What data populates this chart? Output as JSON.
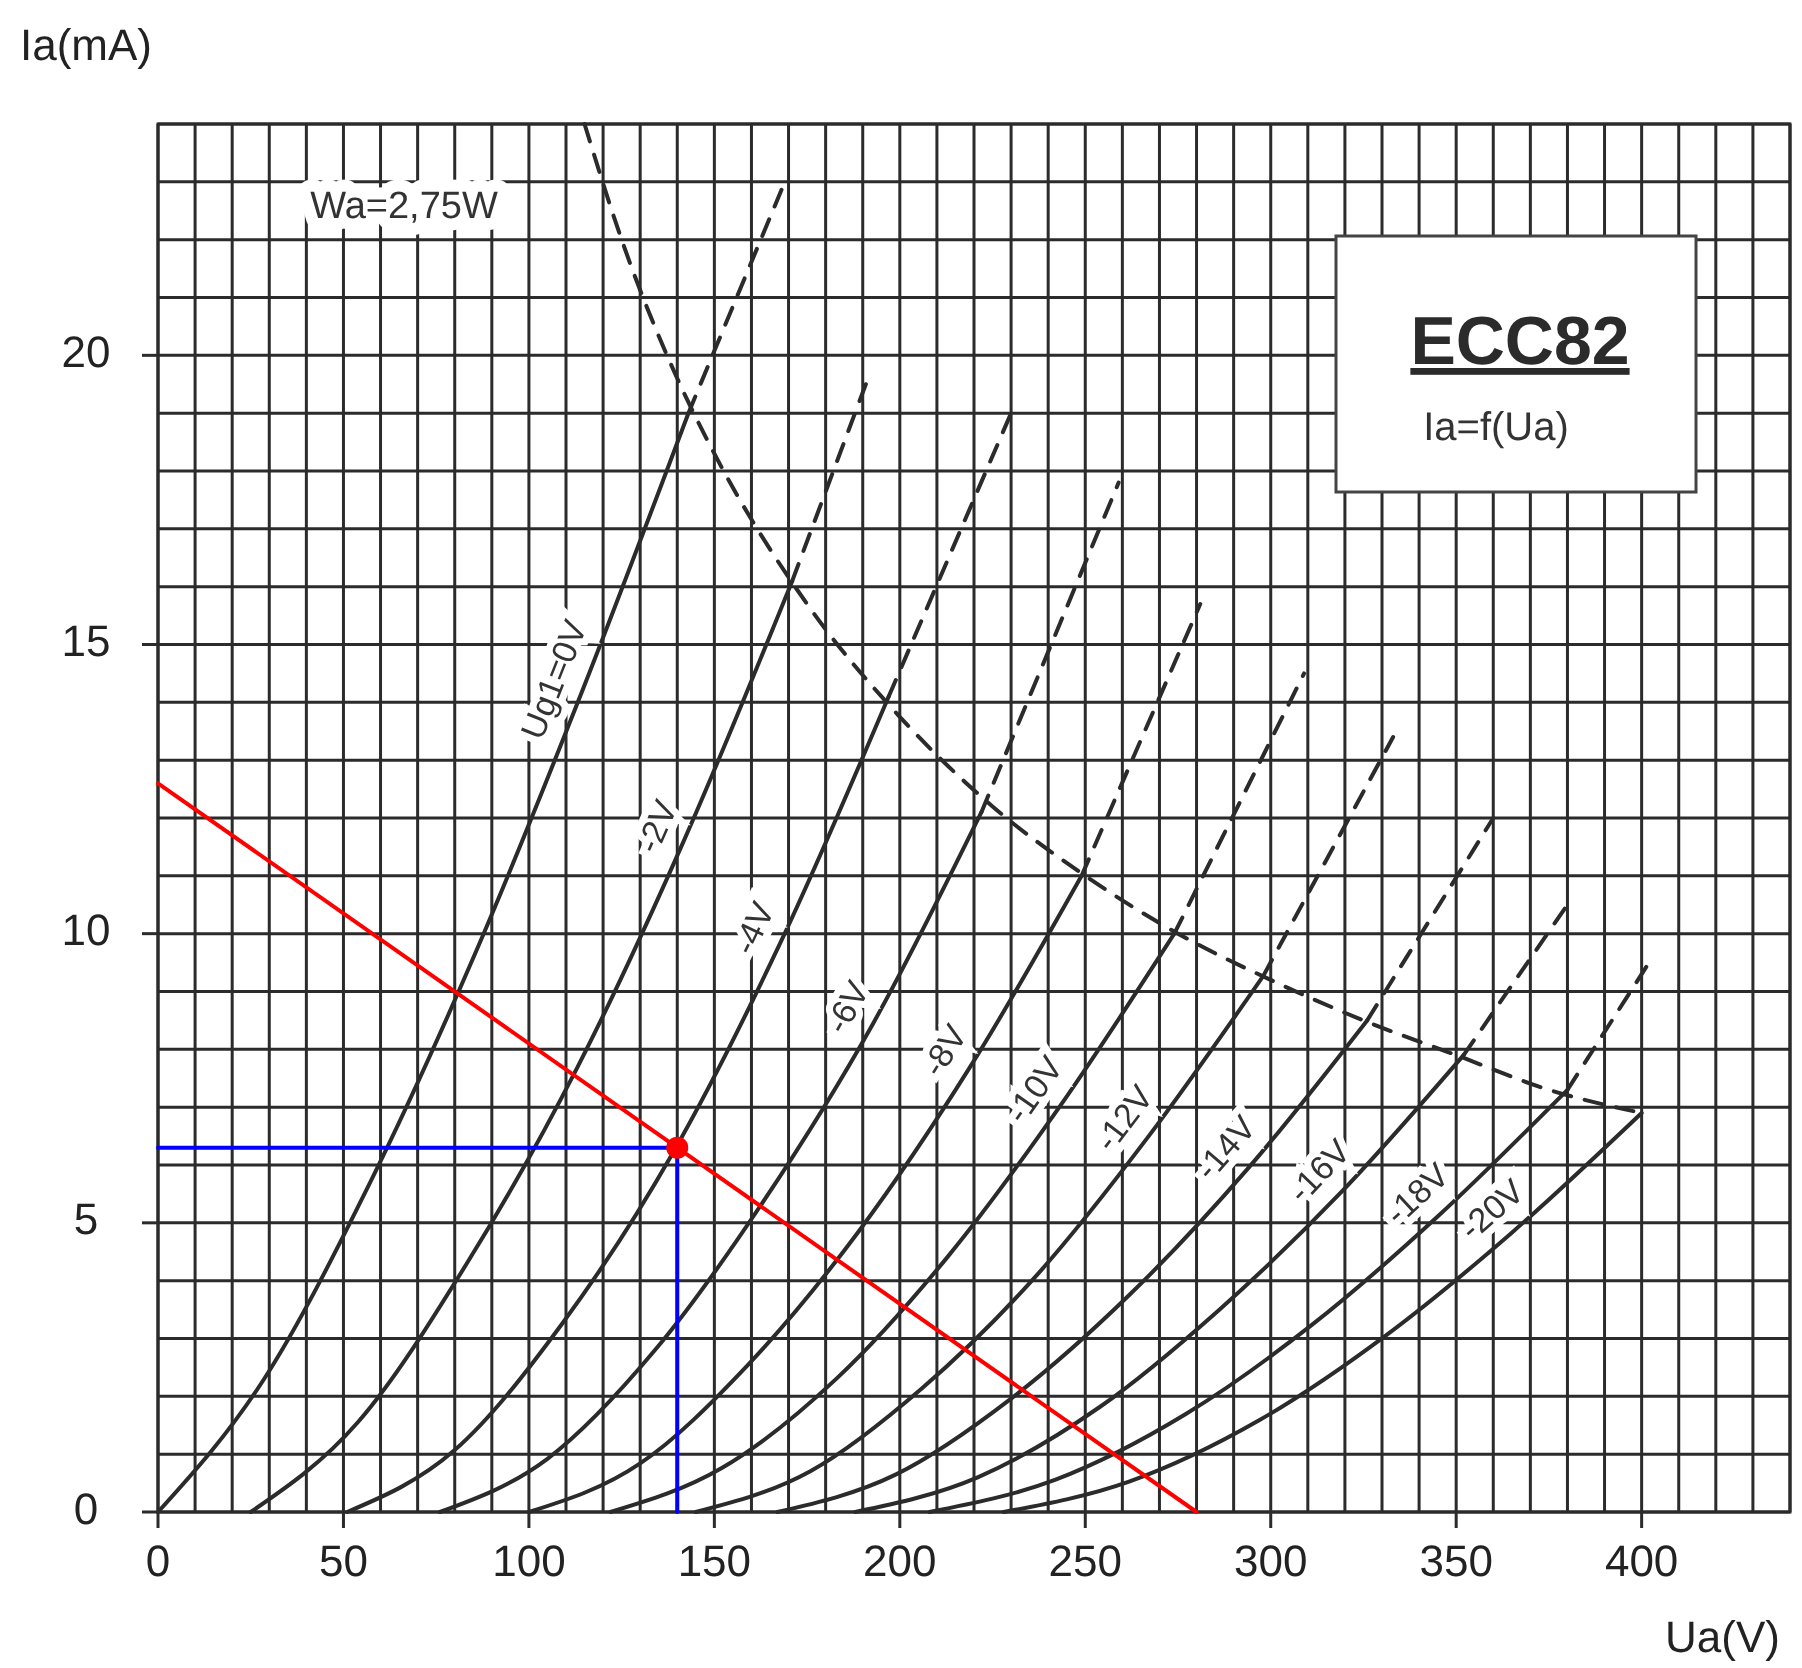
{
  "chart_data": {
    "type": "line",
    "title": "ECC82",
    "subtitle": "Ia=f(Ua)",
    "xlabel": "Ua(V)",
    "ylabel": "Ia(mA)",
    "annotations": [
      "Wa=2,75W"
    ],
    "xlim": [
      0,
      440
    ],
    "ylim": [
      0,
      24
    ],
    "xticks": [
      0,
      {
        "value": 10,
        "label": null
      },
      {
        "value": 20,
        "label": null
      },
      {
        "value": 30,
        "label": null
      },
      {
        "value": 40,
        "label": null
      },
      50,
      {
        "value": 60,
        "label": null
      },
      {
        "value": 70,
        "label": null
      },
      {
        "value": 80,
        "label": null
      },
      {
        "value": 90,
        "label": null
      },
      100,
      {
        "value": 110,
        "label": null
      },
      {
        "value": 120,
        "label": null
      },
      {
        "value": 130,
        "label": null
      },
      {
        "value": 140,
        "label": null
      },
      150,
      {
        "value": 160,
        "label": null
      },
      {
        "value": 170,
        "label": null
      },
      {
        "value": 180,
        "label": null
      },
      {
        "value": 190,
        "label": null
      },
      200,
      {
        "value": 210,
        "label": null
      },
      {
        "value": 220,
        "label": null
      },
      {
        "value": 230,
        "label": null
      },
      {
        "value": 240,
        "label": null
      },
      250,
      {
        "value": 260,
        "label": null
      },
      {
        "value": 270,
        "label": null
      },
      {
        "value": 280,
        "label": null
      },
      {
        "value": 290,
        "label": null
      },
      300,
      {
        "value": 310,
        "label": null
      },
      {
        "value": 320,
        "label": null
      },
      {
        "value": 330,
        "label": null
      },
      {
        "value": 340,
        "label": null
      },
      350,
      {
        "value": 360,
        "label": null
      },
      {
        "value": 370,
        "label": null
      },
      {
        "value": 380,
        "label": null
      },
      {
        "value": 390,
        "label": null
      },
      400,
      {
        "value": 410,
        "label": null
      },
      {
        "value": 420,
        "label": null
      },
      {
        "value": 430,
        "label": null
      },
      {
        "value": 440,
        "label": null
      }
    ],
    "yticks": [
      0,
      {
        "value": 1,
        "label": null
      },
      {
        "value": 2,
        "label": null
      },
      {
        "value": 3,
        "label": null
      },
      {
        "value": 4,
        "label": null
      },
      5,
      {
        "value": 6,
        "label": null
      },
      {
        "value": 7,
        "label": null
      },
      {
        "value": 8,
        "label": null
      },
      {
        "value": 9,
        "label": null
      },
      10,
      {
        "value": 11,
        "label": null
      },
      {
        "value": 12,
        "label": null
      },
      {
        "value": 13,
        "label": null
      },
      {
        "value": 14,
        "label": null
      },
      15,
      {
        "value": 16,
        "label": null
      },
      {
        "value": 17,
        "label": null
      },
      {
        "value": 18,
        "label": null
      },
      {
        "value": 19,
        "label": null
      },
      20,
      {
        "value": 21,
        "label": null
      },
      {
        "value": 22,
        "label": null
      },
      {
        "value": 23,
        "label": null
      },
      {
        "value": 24,
        "label": null
      }
    ],
    "grid": true,
    "line_style": "solid",
    "marker": "none",
    "series": [
      {
        "name": "Ug1=0V",
        "color": "#2b2b2b",
        "x": [
          0,
          28.6,
          57.2,
          85.8,
          114.4,
          143
        ],
        "values": [
          0,
          2.3,
          5.7,
          9.7,
          14.2,
          19.0
        ]
      },
      {
        "name": "-2V",
        "color": "#2b2b2b",
        "x": [
          25,
          54,
          83,
          113,
          142,
          171
        ],
        "values": [
          0,
          1.56,
          4.27,
          7.68,
          11.64,
          16.1
        ]
      },
      {
        "name": "-4V",
        "color": "#2b2b2b",
        "x": [
          51,
          80,
          109,
          139,
          168,
          197
        ],
        "values": [
          0,
          1.07,
          3.26,
          6.23,
          9.87,
          14.1
        ]
      },
      {
        "name": "-6V",
        "color": "#2b2b2b",
        "x": [
          76,
          105,
          134,
          163,
          193,
          222
        ],
        "values": [
          0,
          0.92,
          2.8,
          5.35,
          8.47,
          12.1
        ]
      },
      {
        "name": "-8V",
        "color": "#2b2b2b",
        "x": [
          100,
          130,
          159,
          189,
          219,
          249
        ],
        "values": [
          0,
          0.84,
          2.54,
          4.86,
          7.7,
          11.0
        ]
      },
      {
        "name": "-10V",
        "color": "#2b2b2b",
        "x": [
          122,
          152,
          183,
          213,
          243,
          274
        ],
        "values": [
          0,
          0.76,
          2.31,
          4.42,
          7.0,
          10.0
        ]
      },
      {
        "name": "-12V",
        "color": "#2b2b2b",
        "x": [
          145,
          176,
          206,
          237,
          267,
          298
        ],
        "values": [
          0,
          0.71,
          2.14,
          4.1,
          6.49,
          9.27
        ]
      },
      {
        "name": "-14V",
        "color": "#2b2b2b",
        "x": [
          167,
          199,
          230,
          262,
          294,
          326
        ],
        "values": [
          0,
          0.65,
          1.96,
          3.76,
          5.95,
          8.5
        ]
      },
      {
        "name": "-16V",
        "color": "#2b2b2b",
        "x": [
          188,
          221,
          254,
          286,
          319,
          352
        ],
        "values": [
          0,
          0.6,
          1.82,
          3.49,
          5.53,
          7.9
        ]
      },
      {
        "name": "-18V",
        "color": "#2b2b2b",
        "x": [
          208,
          242,
          277,
          311,
          345,
          380
        ],
        "values": [
          0,
          0.56,
          1.69,
          3.23,
          5.11,
          7.3
        ]
      },
      {
        "name": "-20V",
        "color": "#2b2b2b",
        "x": [
          228,
          262,
          297,
          331,
          365,
          400
        ],
        "values": [
          0,
          0.53,
          1.59,
          3.05,
          4.83,
          6.9
        ]
      },
      {
        "color": "#2b2b2b",
        "line_style": "dashed",
        "x": [
          143,
          169
        ],
        "values": [
          19.0,
          23.0
        ]
      },
      {
        "color": "#2b2b2b",
        "line_style": "dashed",
        "x": [
          171,
          192
        ],
        "values": [
          16.1,
          19.7
        ]
      },
      {
        "color": "#2b2b2b",
        "line_style": "dashed",
        "x": [
          197,
          230
        ],
        "values": [
          14.1,
          19.0
        ]
      },
      {
        "color": "#2b2b2b",
        "line_style": "dashed",
        "x": [
          222,
          259
        ],
        "values": [
          12.1,
          17.8
        ]
      },
      {
        "color": "#2b2b2b",
        "line_style": "dashed",
        "x": [
          249,
          281
        ],
        "values": [
          11.0,
          15.7
        ]
      },
      {
        "color": "#2b2b2b",
        "line_style": "dashed",
        "x": [
          274,
          309
        ],
        "values": [
          10.0,
          14.5
        ]
      },
      {
        "color": "#2b2b2b",
        "line_style": "dashed",
        "x": [
          298,
          333
        ],
        "values": [
          9.27,
          13.4
        ]
      },
      {
        "color": "#2b2b2b",
        "line_style": "dashed",
        "x": [
          326,
          360
        ],
        "values": [
          8.5,
          12.0
        ]
      },
      {
        "color": "#2b2b2b",
        "line_style": "dashed",
        "x": [
          352,
          380
        ],
        "values": [
          7.9,
          10.5
        ]
      },
      {
        "color": "#2b2b2b",
        "line_style": "dashed",
        "x": [
          380,
          403
        ],
        "values": [
          7.3,
          9.6
        ]
      },
      {
        "color": "#2b2b2b",
        "line_style": "dashed",
        "x": [
          115,
          125,
          140,
          150,
          175,
          200,
          225,
          250,
          275,
          300,
          325,
          350,
          375,
          400
        ],
        "values": [
          24,
          22,
          19.6,
          18.3,
          15.7,
          13.75,
          12.2,
          11,
          10,
          9.2,
          8.5,
          7.9,
          7.3,
          6.9
        ]
      },
      {
        "color": "#ff0000",
        "x": [
          0,
          280
        ],
        "values": [
          12.6,
          0
        ]
      },
      {
        "color": "#0000ff",
        "x": [
          0,
          140,
          140
        ],
        "values": [
          6.3,
          6.3,
          0
        ]
      },
      {
        "type": "scatter",
        "marker": "circle",
        "color": "#ff0000",
        "x": [
          140
        ],
        "values": [
          6.3
        ]
      }
    ]
  }
}
